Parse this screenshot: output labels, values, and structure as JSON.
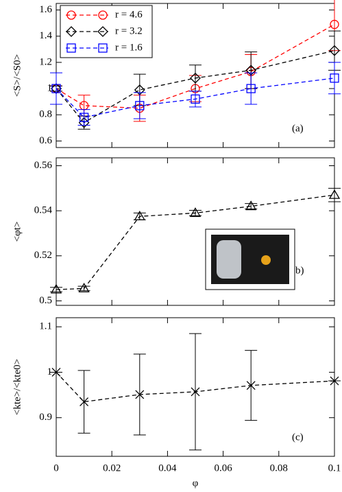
{
  "chart_data": [
    {
      "type": "line",
      "ylabel": "<S>/<S0>",
      "annotation": "(a)",
      "xlim": [
        0,
        0.1
      ],
      "xticks": [
        0,
        0.02,
        0.04,
        0.06,
        0.08,
        0.1
      ],
      "ylim": [
        0.55,
        1.65
      ],
      "yticks": [
        0.6,
        0.8,
        1,
        1.2,
        1.4,
        1.6
      ],
      "legend": "upper left",
      "x": [
        0,
        0.01,
        0.03,
        0.05,
        0.07,
        0.1
      ],
      "series": [
        {
          "name": "r = 4.6",
          "color": "#ff0000",
          "marker": "circle",
          "values": [
            1.0,
            0.87,
            0.85,
            1.0,
            1.13,
            1.49
          ],
          "errors": [
            0.02,
            0.08,
            0.1,
            0.1,
            0.13,
            0.2
          ]
        },
        {
          "name": "r = 3.2",
          "color": "#000000",
          "marker": "diamond",
          "values": [
            1.0,
            0.74,
            0.99,
            1.08,
            1.14,
            1.29
          ],
          "errors": [
            0.02,
            0.05,
            0.12,
            0.1,
            0.14,
            0.15
          ]
        },
        {
          "name": "r = 1.6",
          "color": "#0000ff",
          "marker": "square",
          "values": [
            1.0,
            0.78,
            0.87,
            0.92,
            1.0,
            1.08
          ],
          "errors": [
            0.12,
            0.06,
            0.1,
            0.06,
            0.12,
            0.12
          ]
        }
      ]
    },
    {
      "type": "line",
      "ylabel": "<φt>",
      "annotation": "(b)",
      "xlim": [
        0,
        0.1
      ],
      "xticks": [
        0,
        0.02,
        0.04,
        0.06,
        0.08,
        0.1
      ],
      "ylim": [
        0.498,
        0.5635
      ],
      "yticks": [
        0.5,
        0.52,
        0.54,
        0.56
      ],
      "x": [
        0,
        0.01,
        0.03,
        0.05,
        0.07,
        0.1
      ],
      "series": [
        {
          "color": "#000000",
          "marker": "triangle",
          "values": [
            0.505,
            0.5055,
            0.5375,
            0.539,
            0.542,
            0.547
          ],
          "errors": [
            0.001,
            0.001,
            0.0015,
            0.0012,
            0.0012,
            0.003
          ]
        }
      ]
    },
    {
      "type": "line",
      "ylabel": "<kte>/<kte0>",
      "annotation": "(c)",
      "xlabel": "φ",
      "xlim": [
        0,
        0.1
      ],
      "xticks": [
        0,
        0.02,
        0.04,
        0.06,
        0.08,
        0.1
      ],
      "ylim": [
        0.815,
        1.12
      ],
      "yticks": [
        0.9,
        1,
        1.1
      ],
      "x": [
        0,
        0.01,
        0.03,
        0.05,
        0.07,
        0.1
      ],
      "series": [
        {
          "color": "#000000",
          "marker": "x",
          "values": [
            1.0,
            0.935,
            0.951,
            0.957,
            0.971,
            0.981
          ],
          "errors": [
            0,
            0.069,
            0.089,
            0.128,
            0.077,
            0
          ]
        }
      ]
    }
  ]
}
